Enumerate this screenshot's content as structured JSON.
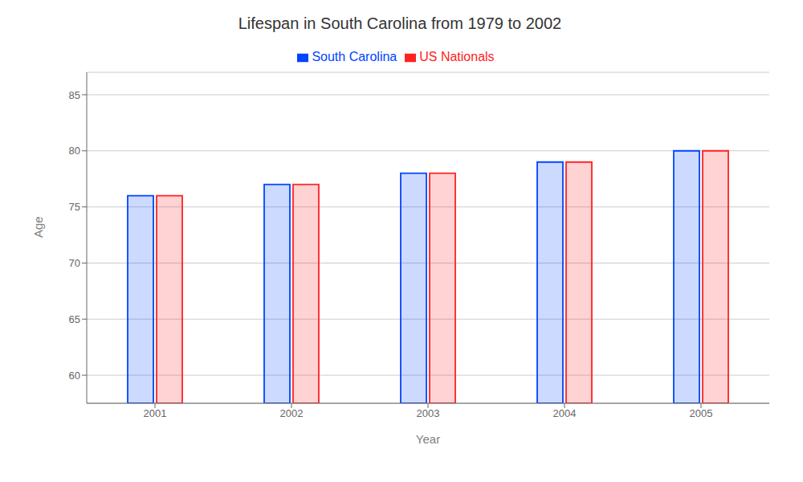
{
  "chart_data": {
    "type": "bar",
    "title": "Lifespan in South Carolina from 1979 to 2002",
    "x_label": "Year",
    "y_label": "Age",
    "categories": [
      "2001",
      "2002",
      "2003",
      "2004",
      "2005"
    ],
    "series": [
      {
        "name": "South Carolina",
        "color": "#0044ff",
        "values": [
          76,
          77,
          78,
          79,
          80
        ]
      },
      {
        "name": "US Nationals",
        "color": "#ff2222",
        "values": [
          76,
          77,
          78,
          79,
          80
        ]
      }
    ],
    "ylim": [
      57.5,
      87
    ],
    "yticks": [
      60,
      65,
      70,
      75,
      80,
      85
    ],
    "grid": true,
    "legend": "top"
  }
}
